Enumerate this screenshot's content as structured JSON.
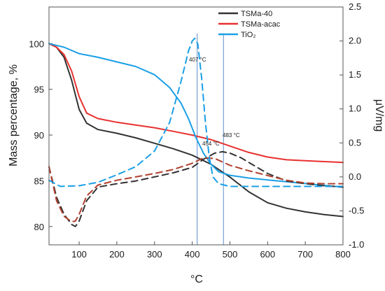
{
  "chart_data": {
    "type": "line",
    "xlabel": "°C",
    "ylabel_left": "Mass percentage, %",
    "ylabel_right": "μV/mg",
    "xlim": [
      20,
      800
    ],
    "ylim_left": [
      78,
      104
    ],
    "ylim_right": [
      -1.0,
      2.5
    ],
    "x_ticks": [
      100,
      200,
      300,
      400,
      500,
      600,
      700,
      800
    ],
    "y_left_ticks": [
      80,
      85,
      90,
      95,
      100
    ],
    "y_right_ticks": [
      -1.0,
      -0.5,
      0.0,
      0.5,
      1.0,
      1.5,
      2.0,
      2.5
    ],
    "y_right_tick_labels": [
      "-1.0",
      "-0.5",
      "0.0",
      "0.5",
      "1.0",
      "1.5",
      "2.0",
      "2.5"
    ],
    "grid": false,
    "legend_position": "top-center",
    "legend": [
      {
        "label": "TSMa-40",
        "color": "#333333"
      },
      {
        "label": "TSMa-acac",
        "color": "#e8312f"
      },
      {
        "label": "TiO₂",
        "color": "#1a9fe6"
      }
    ],
    "series": [
      {
        "name": "TSMa-40",
        "kind": "TG",
        "axis": "left",
        "color": "#333333",
        "dash": false,
        "x": [
          20,
          40,
          60,
          80,
          100,
          120,
          150,
          200,
          250,
          300,
          350,
          400,
          450,
          500,
          550,
          600,
          650,
          700,
          750,
          800
        ],
        "y": [
          100,
          99.6,
          98.5,
          96.0,
          92.8,
          91.3,
          90.6,
          90.2,
          89.7,
          89.1,
          88.5,
          87.8,
          86.8,
          85.4,
          83.8,
          82.6,
          82.0,
          81.6,
          81.3,
          81.1
        ]
      },
      {
        "name": "TSMa-acac",
        "kind": "TG",
        "axis": "left",
        "color": "#e8312f",
        "dash": false,
        "x": [
          20,
          40,
          60,
          80,
          100,
          120,
          150,
          200,
          250,
          300,
          350,
          400,
          450,
          500,
          550,
          600,
          650,
          700,
          750,
          800
        ],
        "y": [
          100,
          99.6,
          98.8,
          97.0,
          94.2,
          92.4,
          91.8,
          91.4,
          91.1,
          90.8,
          90.4,
          90.0,
          89.5,
          88.8,
          88.1,
          87.6,
          87.3,
          87.2,
          87.1,
          87.0
        ]
      },
      {
        "name": "TiO₂",
        "kind": "TG",
        "axis": "left",
        "color": "#1a9fe6",
        "dash": false,
        "x": [
          20,
          60,
          100,
          150,
          200,
          250,
          300,
          340,
          370,
          390,
          410,
          430,
          450,
          470,
          500,
          550,
          600,
          650,
          700,
          750,
          800
        ],
        "y": [
          100,
          99.6,
          98.9,
          98.5,
          98.0,
          97.5,
          96.6,
          95.2,
          93.5,
          91.8,
          89.7,
          88.0,
          86.8,
          86.0,
          85.6,
          85.3,
          85.1,
          84.9,
          84.7,
          84.5,
          84.3
        ]
      },
      {
        "name": "TSMa-40",
        "kind": "DTA",
        "axis": "right",
        "color": "#333333",
        "dash": true,
        "x": [
          20,
          40,
          60,
          80,
          90,
          100,
          120,
          150,
          200,
          250,
          300,
          350,
          400,
          430,
          460,
          480,
          500,
          530,
          560,
          600,
          650,
          700,
          750,
          800
        ],
        "y": [
          0.15,
          -0.3,
          -0.55,
          -0.7,
          -0.73,
          -0.65,
          -0.35,
          -0.15,
          -0.1,
          -0.06,
          0.0,
          0.06,
          0.14,
          0.26,
          0.35,
          0.37,
          0.35,
          0.28,
          0.18,
          0.05,
          -0.06,
          -0.1,
          -0.13,
          -0.15
        ]
      },
      {
        "name": "TSMa-acac",
        "kind": "DTA",
        "axis": "right",
        "color": "#b1402e",
        "dash": true,
        "x": [
          20,
          40,
          60,
          80,
          90,
          100,
          120,
          150,
          200,
          250,
          300,
          350,
          400,
          430,
          460,
          480,
          500,
          550,
          600,
          650,
          700,
          750,
          800
        ],
        "y": [
          0.15,
          -0.35,
          -0.58,
          -0.66,
          -0.65,
          -0.55,
          -0.28,
          -0.12,
          -0.05,
          0.0,
          0.05,
          0.11,
          0.2,
          0.28,
          0.27,
          0.22,
          0.17,
          0.09,
          0.02,
          -0.05,
          -0.09,
          -0.1,
          -0.1
        ]
      },
      {
        "name": "TiO₂",
        "kind": "DTA",
        "axis": "right",
        "color": "#1a9fe6",
        "dash": true,
        "x": [
          20,
          50,
          100,
          150,
          200,
          250,
          300,
          340,
          370,
          390,
          400,
          407,
          415,
          425,
          435,
          445,
          455,
          470,
          500,
          550,
          600,
          650,
          700,
          800
        ],
        "y": [
          -0.05,
          -0.14,
          -0.13,
          -0.08,
          0.03,
          0.15,
          0.38,
          0.8,
          1.4,
          1.85,
          2.0,
          2.04,
          1.95,
          1.45,
          0.8,
          0.3,
          0.0,
          -0.1,
          -0.14,
          -0.14,
          -0.14,
          -0.14,
          -0.14,
          -0.14
        ]
      }
    ],
    "vertical_markers": [
      {
        "x": 413,
        "color": "#7a9fd6"
      },
      {
        "x": 483,
        "color": "#7a9fd6"
      }
    ],
    "annotations": [
      {
        "text": "407 °C",
        "x": 407,
        "y": 1.75
      },
      {
        "text": "454 °C",
        "x": 454,
        "y": 0.48
      },
      {
        "text": "483 °C",
        "x": 483,
        "y": 0.62
      }
    ]
  }
}
